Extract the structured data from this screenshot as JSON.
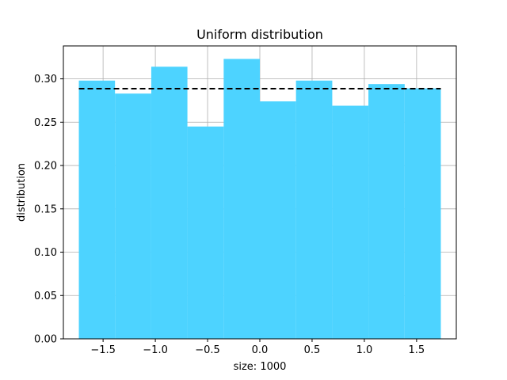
{
  "chart_data": {
    "type": "bar",
    "title": "Uniform distribution",
    "xlabel": "size: 1000",
    "ylabel": "distribution",
    "xlim": [
      -1.88,
      1.88
    ],
    "ylim": [
      0,
      0.338
    ],
    "grid": true,
    "bar_color": "#4dd3ff",
    "bins": [
      {
        "x0": -1.732,
        "x1": -1.386,
        "value": 0.298
      },
      {
        "x0": -1.386,
        "x1": -1.039,
        "value": 0.283
      },
      {
        "x0": -1.039,
        "x1": -0.693,
        "value": 0.314
      },
      {
        "x0": -0.693,
        "x1": -0.346,
        "value": 0.245
      },
      {
        "x0": -0.346,
        "x1": 0.0,
        "value": 0.323
      },
      {
        "x0": 0.0,
        "x1": 0.346,
        "value": 0.274
      },
      {
        "x0": 0.346,
        "x1": 0.693,
        "value": 0.298
      },
      {
        "x0": 0.693,
        "x1": 1.039,
        "value": 0.269
      },
      {
        "x0": 1.039,
        "x1": 1.386,
        "value": 0.294
      },
      {
        "x0": 1.386,
        "x1": 1.732,
        "value": 0.289
      }
    ],
    "reference_line": {
      "x0": -1.732,
      "x1": 1.732,
      "y": 0.2887,
      "color": "#000000",
      "style": "dashed"
    },
    "xticks": [
      -1.5,
      -1.0,
      -0.5,
      0.0,
      0.5,
      1.0,
      1.5
    ],
    "xtick_labels": [
      "−1.5",
      "−1.0",
      "−0.5",
      "0.0",
      "0.5",
      "1.0",
      "1.5"
    ],
    "yticks": [
      0.0,
      0.05,
      0.1,
      0.15,
      0.2,
      0.25,
      0.3
    ],
    "ytick_labels": [
      "0.00",
      "0.05",
      "0.10",
      "0.15",
      "0.20",
      "0.25",
      "0.30"
    ]
  }
}
